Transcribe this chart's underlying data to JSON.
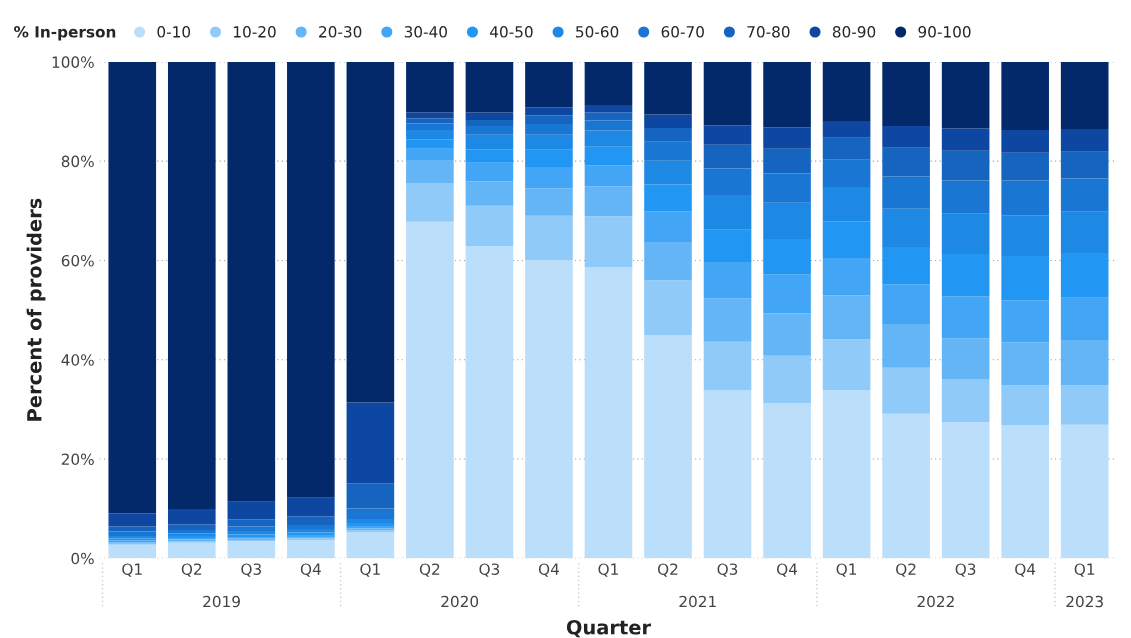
{
  "chart_data": {
    "type": "bar",
    "stacked": true,
    "xlabel": "Quarter",
    "ylabel": "Percent of providers",
    "legend_title": "% In-person",
    "categories": [
      "Q1",
      "Q2",
      "Q3",
      "Q4",
      "Q1",
      "Q2",
      "Q3",
      "Q4",
      "Q1",
      "Q2",
      "Q3",
      "Q4",
      "Q1",
      "Q2",
      "Q3",
      "Q4",
      "Q1"
    ],
    "annotations": [
      "2019",
      "2020",
      "2021",
      "2022",
      "2023"
    ],
    "ylim": [
      0,
      100
    ],
    "yticks": [
      {
        "value": 0,
        "label": "0%"
      },
      {
        "value": 20,
        "label": "20%"
      },
      {
        "value": 40,
        "label": "40%"
      },
      {
        "value": 60,
        "label": "60%"
      },
      {
        "value": 80,
        "label": "80%"
      },
      {
        "value": 100,
        "label": "100%"
      }
    ],
    "grid": "y",
    "legend": "top left",
    "series": [
      {
        "name": "0-10",
        "color": "#bbdefb",
        "values": [
          2.7,
          3.1,
          3.5,
          3.7,
          5.2,
          67.8,
          62.9,
          60.1,
          58.7,
          45.0,
          33.8,
          31.3,
          33.9,
          29.1,
          27.4,
          26.8,
          26.9
        ]
      },
      {
        "name": "10-20",
        "color": "#90caf9",
        "values": [
          0.2,
          0.4,
          0.2,
          0.3,
          0.4,
          7.8,
          8.1,
          8.9,
          10.2,
          11.0,
          9.8,
          9.5,
          10.2,
          9.3,
          8.7,
          8.0,
          7.9
        ]
      },
      {
        "name": "20-30",
        "color": "#64b5f6",
        "values": [
          0.3,
          0.3,
          0.3,
          0.3,
          0.4,
          4.5,
          4.9,
          5.5,
          6.0,
          7.7,
          8.8,
          8.5,
          8.9,
          8.8,
          8.2,
          8.7,
          9.0
        ]
      },
      {
        "name": "30-40",
        "color": "#42a5f5",
        "values": [
          0.4,
          0.3,
          0.3,
          0.4,
          0.5,
          2.4,
          3.8,
          4.3,
          4.3,
          6.2,
          7.3,
          7.9,
          7.5,
          8.0,
          8.5,
          8.5,
          8.7
        ]
      },
      {
        "name": "40-50",
        "color": "#2196f3",
        "values": [
          0.4,
          0.4,
          0.5,
          0.5,
          0.6,
          1.9,
          2.7,
          3.5,
          3.7,
          5.4,
          6.5,
          7.1,
          7.4,
          7.5,
          8.5,
          8.9,
          9.0
        ]
      },
      {
        "name": "50-60",
        "color": "#1e88e5",
        "values": [
          0.5,
          0.5,
          0.7,
          0.7,
          0.8,
          1.9,
          2.9,
          3.0,
          3.3,
          4.8,
          7.0,
          7.3,
          6.9,
          7.7,
          8.1,
          8.2,
          8.3
        ]
      },
      {
        "name": "60-70",
        "color": "#1976d2",
        "values": [
          0.9,
          0.7,
          0.9,
          0.8,
          2.1,
          1.3,
          1.8,
          2.2,
          2.0,
          3.8,
          5.3,
          5.9,
          5.5,
          6.5,
          6.7,
          7.0,
          6.7
        ]
      },
      {
        "name": "70-80",
        "color": "#1565c0",
        "values": [
          1.0,
          1.1,
          1.4,
          1.7,
          5.1,
          1.0,
          1.2,
          1.7,
          1.6,
          2.8,
          4.8,
          5.0,
          4.4,
          5.8,
          6.0,
          5.6,
          5.4
        ]
      },
      {
        "name": "80-90",
        "color": "#0d47a1",
        "values": [
          2.6,
          3.1,
          3.6,
          3.8,
          16.3,
          1.2,
          1.5,
          1.6,
          1.5,
          2.7,
          3.9,
          4.3,
          3.4,
          4.4,
          4.5,
          4.6,
          4.6
        ]
      },
      {
        "name": "90-100",
        "color": "#03296a",
        "values": [
          91.0,
          90.1,
          88.6,
          87.8,
          68.6,
          10.2,
          10.2,
          9.2,
          8.7,
          10.6,
          12.8,
          13.2,
          11.9,
          12.9,
          13.4,
          13.7,
          13.5
        ]
      }
    ]
  }
}
